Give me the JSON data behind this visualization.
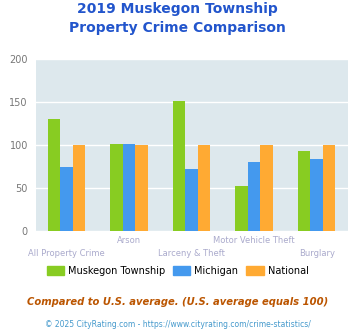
{
  "title_line1": "2019 Muskegon Township",
  "title_line2": "Property Crime Comparison",
  "title_color": "#2255cc",
  "categories": [
    "All Property Crime",
    "Arson",
    "Larceny & Theft",
    "Motor Vehicle Theft",
    "Burglary"
  ],
  "cat_labels_row1": [
    "",
    "Arson",
    "",
    "Motor Vehicle Theft",
    ""
  ],
  "cat_labels_row2": [
    "All Property Crime",
    "",
    "Larceny & Theft",
    "",
    "Burglary"
  ],
  "series": {
    "Muskegon Township": [
      130,
      101,
      151,
      53,
      93
    ],
    "Michigan": [
      75,
      101,
      72,
      81,
      84
    ],
    "National": [
      100,
      100,
      100,
      100,
      100
    ]
  },
  "colors": {
    "Muskegon Township": "#88cc22",
    "Michigan": "#4499ee",
    "National": "#ffaa33"
  },
  "ylim": [
    0,
    200
  ],
  "yticks": [
    0,
    50,
    100,
    150,
    200
  ],
  "plot_bg_color": "#dde8ed",
  "fig_bg_color": "#ffffff",
  "grid_color": "#ffffff",
  "xlabel_color": "#aaaacc",
  "ylabel_color": "#777777",
  "footnote1": "Compared to U.S. average. (U.S. average equals 100)",
  "footnote2": "© 2025 CityRating.com - https://www.cityrating.com/crime-statistics/",
  "footnote1_color": "#bb5500",
  "footnote2_color": "#4499cc"
}
